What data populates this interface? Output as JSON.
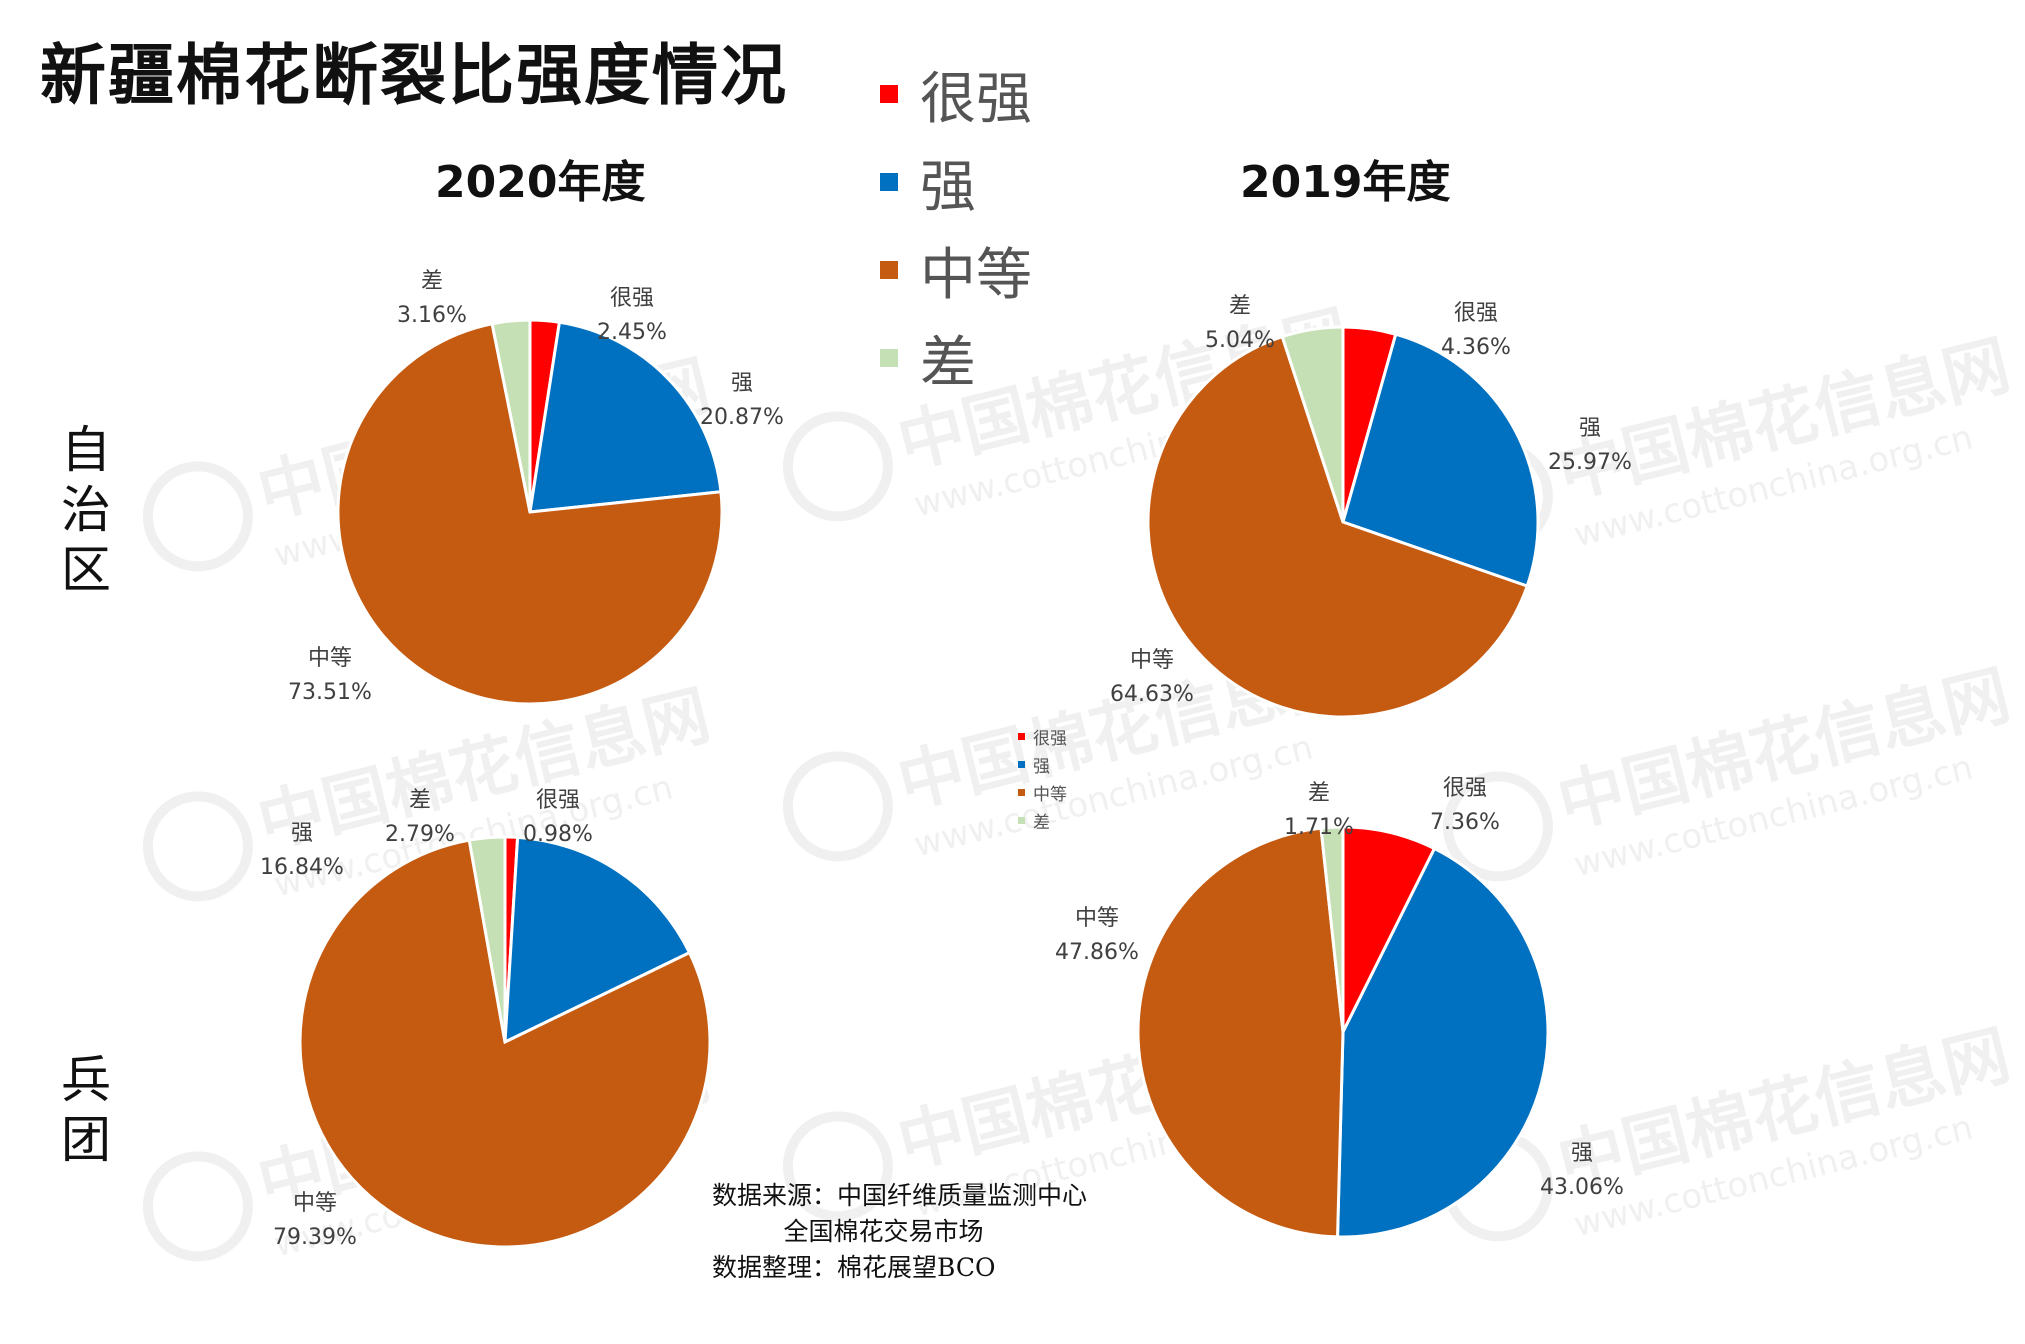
{
  "title": "新疆棉花断裂比强度情况",
  "year_labels": [
    "2020年度",
    "2019年度"
  ],
  "row_labels": [
    "自治区",
    "兵团"
  ],
  "legend": [
    {
      "label": "很强",
      "color": "#FF0000"
    },
    {
      "label": "强",
      "color": "#0070C0"
    },
    {
      "label": "中等",
      "color": "#C55A11"
    },
    {
      "label": "差",
      "color": "#C5E0B4"
    }
  ],
  "source": "数据来源：中国纤维质量监测中心\n         全国棉花交易市场\n数据整理：棉花展望BCO",
  "watermark": {
    "text": "中国棉花信息网",
    "url": "www.cottonchina.org.cn"
  },
  "chart_data": [
    {
      "type": "pie",
      "title": "2020年度",
      "row": "自治区",
      "categories": [
        "很强",
        "强",
        "中等",
        "差"
      ],
      "values": [
        2.45,
        20.87,
        73.51,
        3.16
      ],
      "labels": [
        "2.45%",
        "20.87%",
        "73.51%",
        "3.16%"
      ]
    },
    {
      "type": "pie",
      "title": "2019年度",
      "row": "自治区",
      "categories": [
        "很强",
        "强",
        "中等",
        "差"
      ],
      "values": [
        4.36,
        25.97,
        64.63,
        5.04
      ],
      "labels": [
        "4.36%",
        "25.97%",
        "64.63%",
        "5.04%"
      ]
    },
    {
      "type": "pie",
      "title": "2020年度",
      "row": "兵团",
      "categories": [
        "很强",
        "强",
        "中等",
        "差"
      ],
      "values": [
        0.98,
        16.84,
        79.39,
        2.79
      ],
      "labels": [
        "0.98%",
        "16.84%",
        "79.39%",
        "2.79%"
      ]
    },
    {
      "type": "pie",
      "title": "2019年度",
      "row": "兵团",
      "categories": [
        "很强",
        "强",
        "中等",
        "差"
      ],
      "values": [
        7.36,
        43.06,
        47.86,
        1.71
      ],
      "labels": [
        "7.36%",
        "43.06%",
        "47.86%",
        "1.71%"
      ]
    }
  ]
}
